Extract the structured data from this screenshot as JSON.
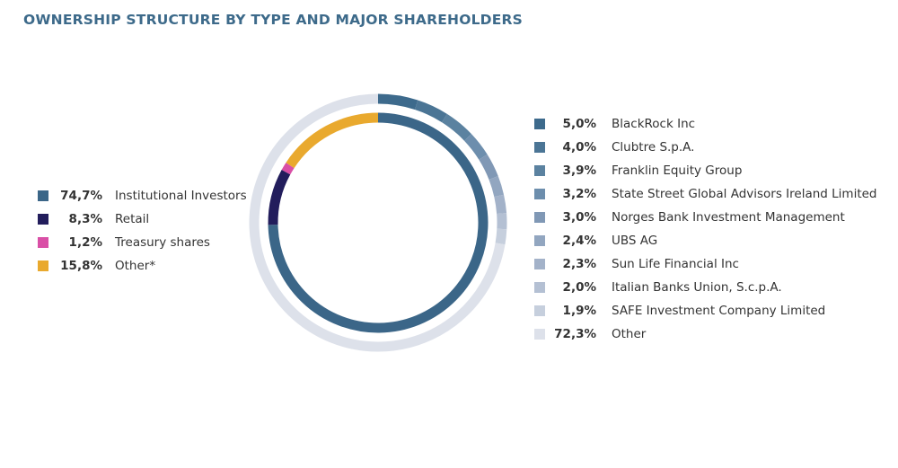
{
  "title": "OWNERSHIP STRUCTURE BY TYPE AND MAJOR SHAREHOLDERS",
  "chart_data": [
    {
      "type": "pie",
      "variant": "donut-inner-ring",
      "series": [
        {
          "label": "Institutional Investors",
          "value": 74.7,
          "display": "74,7%",
          "color": "#3b6688"
        },
        {
          "label": "Retail",
          "value": 8.3,
          "display": "8,3%",
          "color": "#221d5c"
        },
        {
          "label": "Treasury shares",
          "value": 1.2,
          "display": "1,2%",
          "color": "#d94fa6"
        },
        {
          "label": "Other*",
          "value": 15.8,
          "display": "15,8%",
          "color": "#e9a92e"
        }
      ]
    },
    {
      "type": "pie",
      "variant": "donut-outer-ring",
      "series": [
        {
          "label": "BlackRock Inc",
          "value": 5.0,
          "display": "5,0%",
          "color": "#3d6a8c"
        },
        {
          "label": "Clubtre S.p.A.",
          "value": 4.0,
          "display": "4,0%",
          "color": "#4b7595"
        },
        {
          "label": "Franklin Equity Group",
          "value": 3.9,
          "display": "3,9%",
          "color": "#5b82a0"
        },
        {
          "label": "State Street Global Advisors Ireland Limited",
          "value": 3.2,
          "display": "3,2%",
          "color": "#6d8ead"
        },
        {
          "label": "Norges Bank Investment Management",
          "value": 3.0,
          "display": "3,0%",
          "color": "#8098b5"
        },
        {
          "label": "UBS AG",
          "value": 2.4,
          "display": "2,4%",
          "color": "#92a6c0"
        },
        {
          "label": "Sun Life Financial Inc",
          "value": 2.3,
          "display": "2,3%",
          "color": "#a3b2c9"
        },
        {
          "label": "Italian Banks Union, S.c.p.A.",
          "value": 2.0,
          "display": "2,0%",
          "color": "#b4c0d3"
        },
        {
          "label": "SAFE Investment Company Limited",
          "value": 1.9,
          "display": "1,9%",
          "color": "#c6cfdd"
        },
        {
          "label": "Other",
          "value": 72.3,
          "display": "72,3%",
          "color": "#dde1ea"
        }
      ]
    }
  ]
}
